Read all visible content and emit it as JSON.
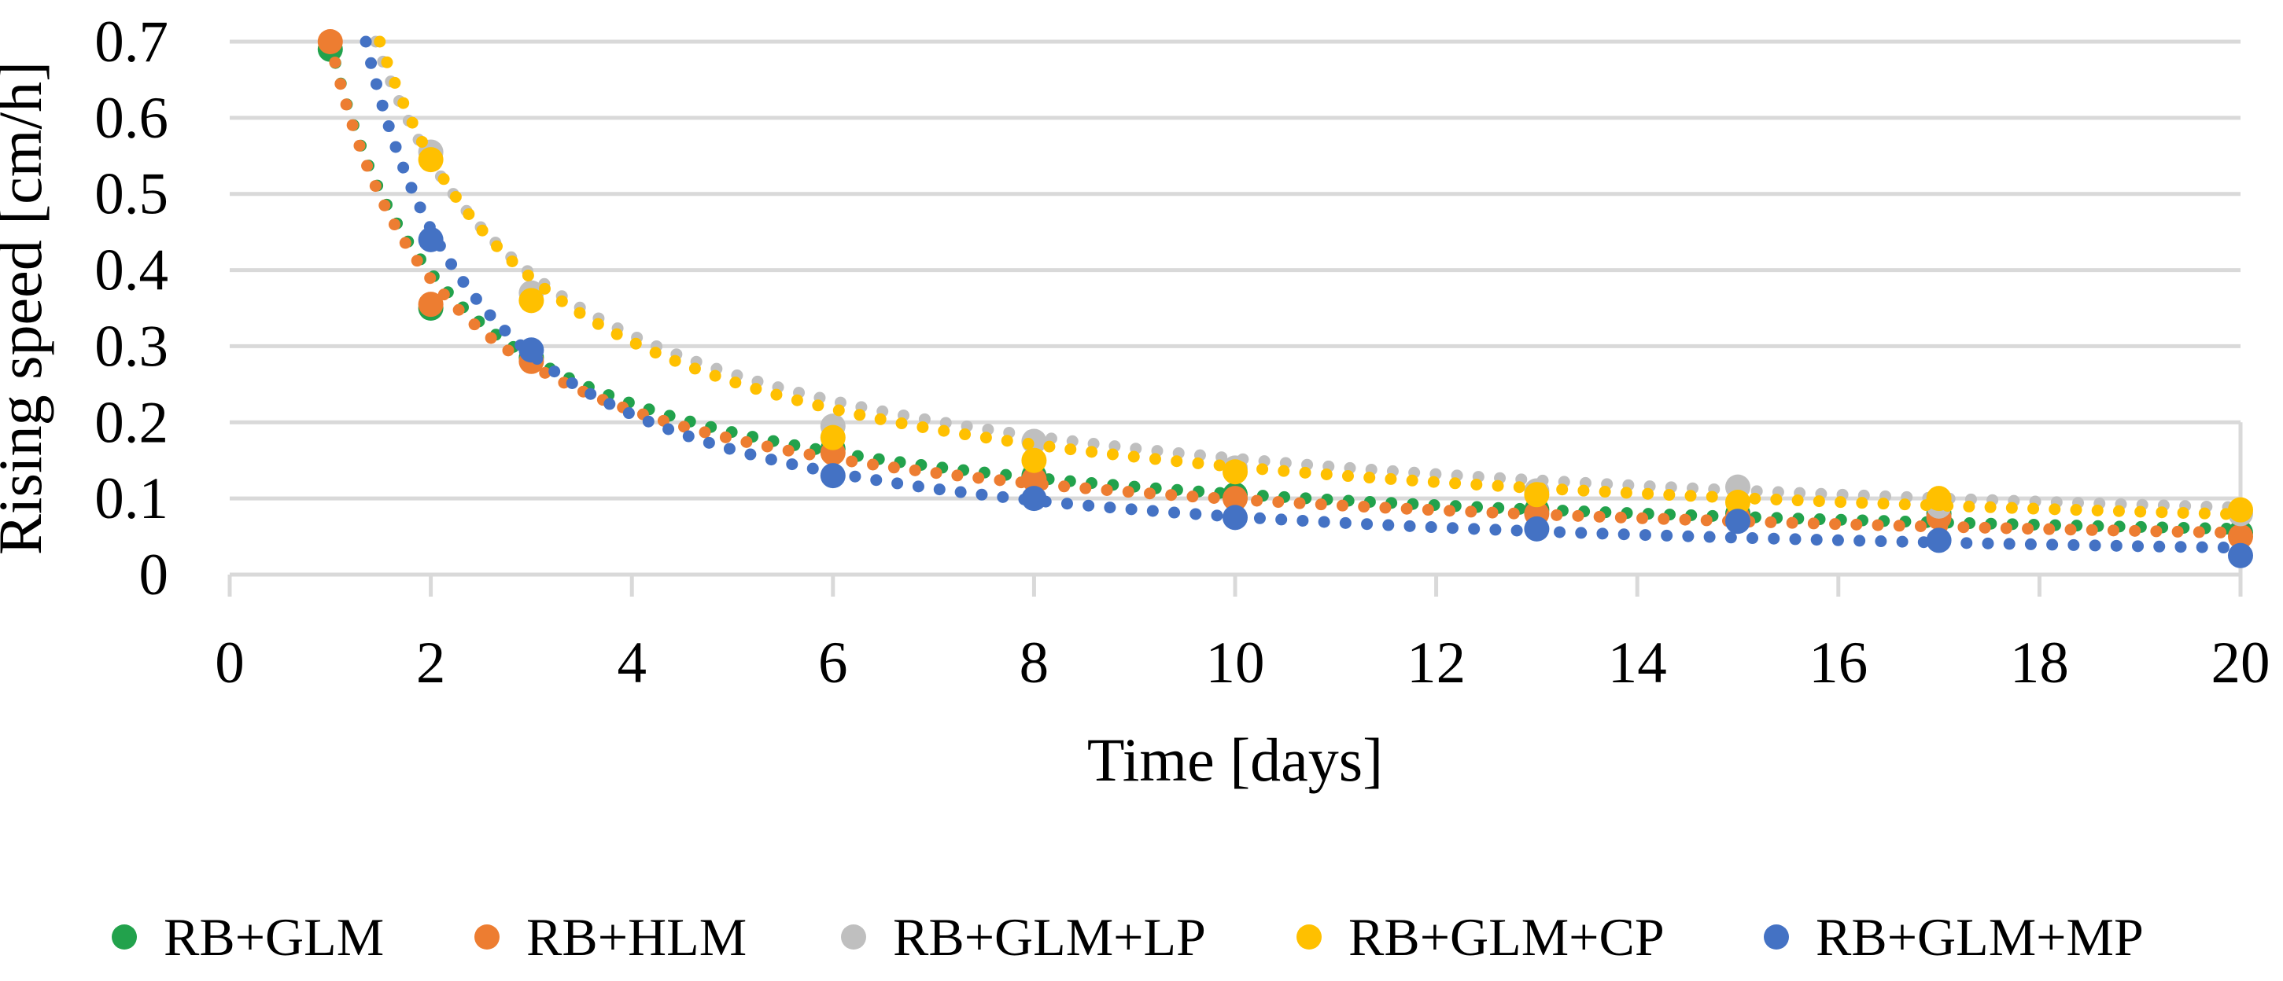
{
  "chart_data": {
    "type": "scatter",
    "title": "",
    "xlabel": "Time [days]",
    "ylabel": "Rising speed [cm/h]",
    "xlim": [
      0,
      20
    ],
    "ylim": [
      0,
      0.7
    ],
    "x_ticks": [
      0,
      2,
      4,
      6,
      8,
      10,
      12,
      14,
      16,
      18,
      20
    ],
    "y_ticks": [
      0,
      0.1,
      0.2,
      0.3,
      0.4,
      0.5,
      0.6,
      0.7
    ],
    "grid": true,
    "legend_position": "bottom",
    "colors": {
      "gridline": "#D9D9D9",
      "text": "#000000"
    },
    "series": [
      {
        "name": "RB+GLM",
        "color": "#22A24C",
        "x": [
          1,
          2,
          3,
          6,
          8,
          10,
          13,
          15,
          17,
          20
        ],
        "y": [
          0.69,
          0.35,
          0.285,
          0.165,
          0.13,
          0.105,
          0.085,
          0.08,
          0.08,
          0.055
        ],
        "trend": {
          "type": "power",
          "a": 0.7,
          "b": -0.82
        }
      },
      {
        "name": "RB+HLM",
        "color": "#ED7D31",
        "x": [
          1,
          2,
          3,
          6,
          8,
          10,
          13,
          15,
          17,
          20
        ],
        "y": [
          0.7,
          0.355,
          0.28,
          0.16,
          0.125,
          0.1,
          0.08,
          0.075,
          0.075,
          0.05
        ],
        "trend": {
          "type": "power",
          "a": 0.7,
          "b": -0.85
        }
      },
      {
        "name": "RB+GLM+LP",
        "color": "#BFBFBF",
        "x": [
          2,
          3,
          6,
          8,
          10,
          13,
          15,
          17,
          20
        ],
        "y": [
          0.555,
          0.37,
          0.195,
          0.175,
          0.14,
          0.11,
          0.115,
          0.09,
          0.08
        ],
        "trend": {
          "type": "power",
          "a": 0.94,
          "b": -0.79
        }
      },
      {
        "name": "RB+GLM+CP",
        "color": "#FFC000",
        "x": [
          2,
          3,
          6,
          8,
          10,
          13,
          15,
          17,
          20
        ],
        "y": [
          0.545,
          0.36,
          0.18,
          0.15,
          0.135,
          0.105,
          0.095,
          0.1,
          0.085
        ],
        "trend": {
          "type": "power",
          "a": 0.98,
          "b": -0.84
        }
      },
      {
        "name": "RB+GLM+MP",
        "color": "#4472C4",
        "x": [
          2,
          3,
          6,
          8,
          10,
          13,
          15,
          17,
          20
        ],
        "y": [
          0.44,
          0.295,
          0.13,
          0.1,
          0.075,
          0.06,
          0.07,
          0.045,
          0.025
        ],
        "trend": {
          "type": "power",
          "a": 0.98,
          "b": -1.11
        }
      }
    ]
  }
}
